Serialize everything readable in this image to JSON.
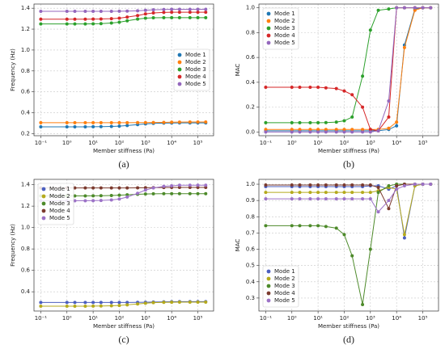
{
  "chart_data": [
    {
      "type": "line",
      "label": "(a)",
      "x_label": "Member stiffness (Pa)",
      "y_label": "Frequency (Hz)",
      "xscale": "log",
      "grid": true,
      "legend": "center right",
      "x": [
        0.1,
        1,
        2,
        5,
        10,
        20,
        50,
        100,
        200,
        500,
        1000,
        2000,
        5000,
        10000,
        20000,
        50000,
        100000,
        200000
      ],
      "xlim": [
        0.055,
        400000
      ],
      "ylim": [
        0.18,
        1.44
      ],
      "xticks": [
        {
          "value": 0.1,
          "label": "10⁻¹"
        },
        {
          "value": 1,
          "label": "10⁰"
        },
        {
          "value": 10,
          "label": "10¹"
        },
        {
          "value": 100,
          "label": "10²"
        },
        {
          "value": 1000,
          "label": "10³"
        },
        {
          "value": 10000,
          "label": "10⁴"
        },
        {
          "value": 100000,
          "label": "10⁵"
        }
      ],
      "yticks": [
        0.2,
        0.4,
        0.6,
        0.8,
        {
          "value": 1.0,
          "label": "1.0"
        },
        1.2,
        1.4
      ],
      "series": [
        {
          "name": "Mode 1",
          "color": "#1f77b4",
          "values": [
            0.265,
            0.265,
            0.265,
            0.265,
            0.266,
            0.267,
            0.269,
            0.272,
            0.278,
            0.286,
            0.293,
            0.298,
            0.301,
            0.302,
            0.303,
            0.303,
            0.303,
            0.303
          ]
        },
        {
          "name": "Mode 2",
          "color": "#ff7f0e",
          "values": [
            0.305,
            0.305,
            0.305,
            0.305,
            0.305,
            0.305,
            0.305,
            0.305,
            0.305,
            0.306,
            0.306,
            0.307,
            0.308,
            0.309,
            0.31,
            0.311,
            0.311,
            0.311
          ]
        },
        {
          "name": "Mode 3",
          "color": "#2ca02c",
          "values": [
            1.25,
            1.25,
            1.25,
            1.25,
            1.251,
            1.253,
            1.258,
            1.266,
            1.28,
            1.296,
            1.305,
            1.309,
            1.31,
            1.31,
            1.31,
            1.31,
            1.31,
            1.31
          ]
        },
        {
          "name": "Mode 4",
          "color": "#d62728",
          "values": [
            1.295,
            1.295,
            1.295,
            1.295,
            1.296,
            1.297,
            1.3,
            1.305,
            1.315,
            1.33,
            1.345,
            1.355,
            1.36,
            1.362,
            1.362,
            1.362,
            1.362,
            1.362
          ]
        },
        {
          "name": "Mode 5",
          "color": "#9467bd",
          "values": [
            1.37,
            1.37,
            1.37,
            1.37,
            1.37,
            1.37,
            1.37,
            1.371,
            1.372,
            1.375,
            1.38,
            1.385,
            1.388,
            1.39,
            1.39,
            1.39,
            1.39,
            1.39
          ]
        }
      ]
    },
    {
      "type": "line",
      "label": "(b)",
      "x_label": "Member stiffness (Pa)",
      "y_label": "MAC",
      "xscale": "log",
      "grid": true,
      "legend": "upper left",
      "x": [
        0.1,
        1,
        2,
        5,
        10,
        20,
        50,
        100,
        200,
        500,
        1000,
        2000,
        5000,
        10000,
        20000,
        50000,
        100000,
        200000
      ],
      "xlim": [
        0.055,
        400000
      ],
      "ylim": [
        -0.03,
        1.03
      ],
      "xticks": [
        {
          "value": 0.1,
          "label": "10⁻¹"
        },
        {
          "value": 1,
          "label": "10⁰"
        },
        {
          "value": 10,
          "label": "10¹"
        },
        {
          "value": 100,
          "label": "10²"
        },
        {
          "value": 1000,
          "label": "10³"
        },
        {
          "value": 10000,
          "label": "10⁴"
        },
        {
          "value": 100000,
          "label": "10⁵"
        }
      ],
      "yticks": [
        {
          "value": 0,
          "label": "0.0"
        },
        0.2,
        0.4,
        0.6,
        0.8,
        {
          "value": 1,
          "label": "1.0"
        }
      ],
      "series": [
        {
          "name": "Mode 1",
          "color": "#1f77b4",
          "values": [
            0.01,
            0.01,
            0.01,
            0.01,
            0.01,
            0.01,
            0.01,
            0.01,
            0.01,
            0.01,
            0.01,
            0.01,
            0.02,
            0.05,
            0.7,
            0.99,
            1.0,
            1.0
          ]
        },
        {
          "name": "Mode 2",
          "color": "#ff7f0e",
          "values": [
            0.02,
            0.02,
            0.02,
            0.02,
            0.02,
            0.02,
            0.02,
            0.02,
            0.02,
            0.02,
            0.02,
            0.02,
            0.03,
            0.08,
            0.68,
            0.98,
            1.0,
            1.0
          ]
        },
        {
          "name": "Mode 3",
          "color": "#2ca02c",
          "values": [
            0.075,
            0.075,
            0.075,
            0.075,
            0.075,
            0.076,
            0.08,
            0.09,
            0.12,
            0.45,
            0.82,
            0.98,
            0.99,
            1.0,
            1.0,
            1.0,
            1.0,
            1.0
          ]
        },
        {
          "name": "Mode 4",
          "color": "#d62728",
          "values": [
            0.36,
            0.36,
            0.36,
            0.36,
            0.36,
            0.355,
            0.35,
            0.33,
            0.3,
            0.2,
            0.02,
            0.01,
            0.12,
            1.0,
            1.0,
            1.0,
            1.0,
            1.0
          ]
        },
        {
          "name": "Mode 5",
          "color": "#9467bd",
          "values": [
            0.0,
            0.0,
            0.0,
            0.0,
            0.0,
            0.0,
            0.0,
            0.0,
            0.0,
            0.0,
            0.0,
            0.01,
            0.25,
            1.0,
            1.0,
            1.0,
            1.0,
            1.0
          ]
        }
      ]
    },
    {
      "type": "line",
      "label": "(c)",
      "x_label": "Member stiffness (Pa)",
      "y_label": "Frequency (Hz)",
      "xscale": "log",
      "grid": true,
      "legend": "upper left",
      "x": [
        0.1,
        1,
        2,
        5,
        10,
        20,
        50,
        100,
        200,
        500,
        1000,
        2000,
        5000,
        10000,
        20000,
        50000,
        100000,
        200000
      ],
      "xlim": [
        0.055,
        400000
      ],
      "ylim": [
        0.22,
        1.45
      ],
      "xticks": [
        {
          "value": 0.1,
          "label": "10⁻¹"
        },
        {
          "value": 1,
          "label": "10⁰"
        },
        {
          "value": 10,
          "label": "10¹"
        },
        {
          "value": 100,
          "label": "10²"
        },
        {
          "value": 1000,
          "label": "10³"
        },
        {
          "value": 10000,
          "label": "10⁴"
        },
        {
          "value": 100000,
          "label": "10⁵"
        }
      ],
      "yticks": [
        0.4,
        0.6,
        0.8,
        {
          "value": 1.0,
          "label": "1.0"
        },
        1.2,
        1.4
      ],
      "series": [
        {
          "name": "Mode 1",
          "color": "#4c5fbf",
          "values": [
            0.3,
            0.3,
            0.3,
            0.3,
            0.3,
            0.3,
            0.3,
            0.3,
            0.3,
            0.301,
            0.302,
            0.304,
            0.306,
            0.307,
            0.308,
            0.308,
            0.308,
            0.308
          ]
        },
        {
          "name": "Mode 2",
          "color": "#b5aa1c",
          "values": [
            0.265,
            0.265,
            0.265,
            0.265,
            0.266,
            0.267,
            0.269,
            0.272,
            0.278,
            0.286,
            0.293,
            0.298,
            0.301,
            0.302,
            0.303,
            0.303,
            0.303,
            0.303
          ]
        },
        {
          "name": "Mode 3",
          "color": "#4d8a2a",
          "values": [
            1.295,
            1.295,
            1.295,
            1.295,
            1.296,
            1.297,
            1.299,
            1.302,
            1.306,
            1.31,
            1.313,
            1.315,
            1.316,
            1.316,
            1.316,
            1.316,
            1.316,
            1.316
          ]
        },
        {
          "name": "Mode 4",
          "color": "#7b3a2e",
          "values": [
            1.37,
            1.37,
            1.37,
            1.37,
            1.37,
            1.37,
            1.37,
            1.37,
            1.37,
            1.371,
            1.372,
            1.373,
            1.374,
            1.375,
            1.375,
            1.375,
            1.375,
            1.375
          ]
        },
        {
          "name": "Mode 5",
          "color": "#9c72c7",
          "values": [
            1.25,
            1.25,
            1.25,
            1.25,
            1.251,
            1.253,
            1.258,
            1.266,
            1.285,
            1.32,
            1.35,
            1.37,
            1.385,
            1.39,
            1.395,
            1.395,
            1.395,
            1.395
          ]
        }
      ]
    },
    {
      "type": "line",
      "label": "(d)",
      "x_label": "Member stiffness (Pa)",
      "y_label": "MAC",
      "xscale": "log",
      "grid": true,
      "legend": "lower left",
      "x": [
        0.1,
        1,
        2,
        5,
        10,
        20,
        50,
        100,
        200,
        500,
        1000,
        2000,
        5000,
        10000,
        20000,
        50000,
        100000,
        200000
      ],
      "xlim": [
        0.055,
        400000
      ],
      "ylim": [
        0.22,
        1.03
      ],
      "xticks": [
        {
          "value": 0.1,
          "label": "10⁻¹"
        },
        {
          "value": 1,
          "label": "10⁰"
        },
        {
          "value": 10,
          "label": "10¹"
        },
        {
          "value": 100,
          "label": "10²"
        },
        {
          "value": 1000,
          "label": "10³"
        },
        {
          "value": 10000,
          "label": "10⁴"
        },
        {
          "value": 100000,
          "label": "10⁵"
        }
      ],
      "yticks": [
        0.3,
        0.4,
        0.5,
        0.6,
        0.7,
        0.8,
        0.9,
        {
          "value": 1.0,
          "label": "1.0"
        }
      ],
      "series": [
        {
          "name": "Mode 1",
          "color": "#4c5fbf",
          "values": [
            0.985,
            0.985,
            0.985,
            0.985,
            0.985,
            0.985,
            0.985,
            0.985,
            0.985,
            0.985,
            0.99,
            0.99,
            0.97,
            0.99,
            0.67,
            0.99,
            1.0,
            1.0
          ]
        },
        {
          "name": "Mode 2",
          "color": "#b5aa1c",
          "values": [
            0.95,
            0.95,
            0.95,
            0.95,
            0.95,
            0.95,
            0.95,
            0.95,
            0.95,
            0.95,
            0.95,
            0.96,
            0.98,
            0.97,
            0.69,
            0.99,
            1.0,
            1.0
          ]
        },
        {
          "name": "Mode 3",
          "color": "#4d8a2a",
          "values": [
            0.745,
            0.745,
            0.745,
            0.745,
            0.745,
            0.74,
            0.73,
            0.69,
            0.56,
            0.26,
            0.6,
            0.95,
            0.99,
            1.0,
            1.0,
            1.0,
            1.0,
            1.0
          ]
        },
        {
          "name": "Mode 4",
          "color": "#7b3a2e",
          "values": [
            0.995,
            0.995,
            0.995,
            0.995,
            0.995,
            0.995,
            0.995,
            0.995,
            0.995,
            0.995,
            0.995,
            0.98,
            0.85,
            0.99,
            1.0,
            1.0,
            1.0,
            1.0
          ]
        },
        {
          "name": "Mode 5",
          "color": "#9c72c7",
          "values": [
            0.91,
            0.91,
            0.91,
            0.91,
            0.91,
            0.91,
            0.91,
            0.91,
            0.91,
            0.91,
            0.91,
            0.83,
            0.9,
            0.97,
            0.99,
            1.0,
            1.0,
            1.0
          ]
        }
      ]
    }
  ]
}
